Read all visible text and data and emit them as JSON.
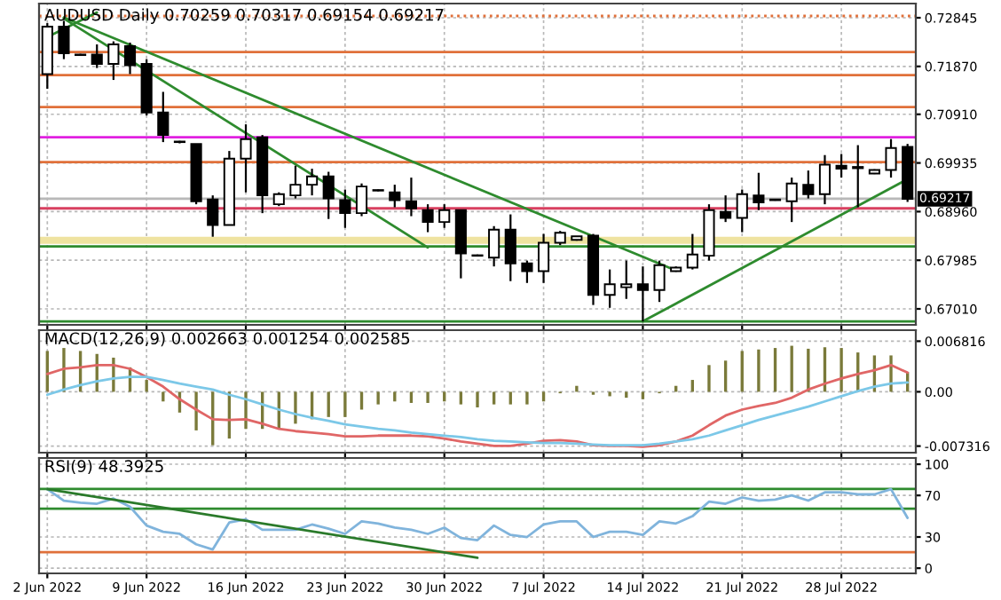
{
  "chart_data": [
    {
      "type": "candlestick",
      "title": "AUDUSD Daily 0.70259 0.70317 0.69154 0.69217",
      "categories": [
        null,
        null,
        null,
        null,
        null,
        null,
        null,
        null,
        null,
        null,
        null,
        null,
        null,
        null,
        null,
        null,
        null,
        null,
        null,
        null,
        null,
        null,
        null,
        null,
        null,
        null,
        null,
        null,
        null,
        null,
        null,
        null,
        null,
        null,
        null,
        null,
        null,
        null,
        null,
        null,
        null,
        null,
        null,
        null,
        null,
        null,
        null,
        null,
        null,
        null,
        null,
        null,
        null
      ],
      "ohlc": [
        [
          0.71716,
          0.72738,
          0.71421,
          0.72667
        ],
        [
          0.72667,
          0.72784,
          0.72016,
          0.72133
        ],
        [
          0.72108,
          0.72122,
          0.72087,
          0.72097
        ],
        [
          0.72108,
          0.72311,
          0.71838,
          0.71919
        ],
        [
          0.71919,
          0.72372,
          0.71599,
          0.72311
        ],
        [
          0.72275,
          0.72347,
          0.71716,
          0.71894
        ],
        [
          0.71919,
          0.72016,
          0.70887,
          0.70948
        ],
        [
          0.70948,
          0.7136,
          0.70353,
          0.70495
        ],
        [
          0.70364,
          0.70378,
          0.70328,
          0.70353
        ],
        [
          0.70317,
          0.70317,
          0.69107,
          0.69168
        ],
        [
          0.69203,
          0.69285,
          0.68456,
          0.6869
        ],
        [
          0.6869,
          0.70175,
          0.6869,
          0.70022
        ],
        [
          0.70022,
          0.70709,
          0.69346,
          0.70414
        ],
        [
          0.70449,
          0.70495,
          0.68929,
          0.69285
        ],
        [
          0.69107,
          0.69346,
          0.69071,
          0.6931
        ],
        [
          0.69285,
          0.6988,
          0.69224,
          0.69499
        ],
        [
          0.69499,
          0.69819,
          0.69285,
          0.69666
        ],
        [
          0.69666,
          0.69758,
          0.68812,
          0.69224
        ],
        [
          0.69189,
          0.69402,
          0.68634,
          0.68929
        ],
        [
          0.68929,
          0.69524,
          0.68868,
          0.69463
        ],
        [
          0.69392,
          0.69402,
          0.69367,
          0.69381
        ],
        [
          0.69346,
          0.69499,
          0.69046,
          0.69189
        ],
        [
          0.69168,
          0.69641,
          0.68868,
          0.69025
        ],
        [
          0.6899,
          0.69107,
          0.68548,
          0.68751
        ],
        [
          0.68751,
          0.69107,
          0.68634,
          0.6899
        ],
        [
          0.6899,
          0.6899,
          0.67622,
          0.68121
        ],
        [
          0.68085,
          0.681,
          0.68064,
          0.68075
        ],
        [
          0.68039,
          0.68669,
          0.67861,
          0.68598
        ],
        [
          0.68598,
          0.68904,
          0.67566,
          0.67922
        ],
        [
          0.67922,
          0.67978,
          0.6753,
          0.67765
        ],
        [
          0.67765,
          0.68512,
          0.6753,
          0.68334
        ],
        [
          0.68334,
          0.68573,
          0.68288,
          0.68537
        ],
        [
          0.68395,
          0.68466,
          0.68377,
          0.68466
        ],
        [
          0.68477,
          0.68512,
          0.67088,
          0.67291
        ],
        [
          0.67291,
          0.678,
          0.67032,
          0.67505
        ],
        [
          0.67444,
          0.67978,
          0.6721,
          0.67505
        ],
        [
          0.67505,
          0.67861,
          0.66757,
          0.67388
        ],
        [
          0.67388,
          0.67978,
          0.67149,
          0.67886
        ],
        [
          0.67765,
          0.67861,
          0.67754,
          0.67836
        ],
        [
          0.67836,
          0.68512,
          0.678,
          0.681
        ],
        [
          0.68075,
          0.69107,
          0.67978,
          0.6899
        ],
        [
          0.68954,
          0.69285,
          0.68751,
          0.68833
        ],
        [
          0.68833,
          0.69402,
          0.68548,
          0.6931
        ],
        [
          0.69285,
          0.69737,
          0.6899,
          0.69143
        ],
        [
          0.69203,
          0.69214,
          0.69178,
          0.69189
        ],
        [
          0.69168,
          0.69641,
          0.68751,
          0.69524
        ],
        [
          0.69499,
          0.69783,
          0.69224,
          0.6931
        ],
        [
          0.6931,
          0.70093,
          0.69107,
          0.69901
        ],
        [
          0.6988,
          0.70114,
          0.69641,
          0.69819
        ],
        [
          0.69855,
          0.70292,
          0.69046,
          0.6983
        ],
        [
          0.69723,
          0.69808,
          0.69712,
          0.69794
        ],
        [
          0.69794,
          0.70414,
          0.69641,
          0.70236
        ],
        [
          0.70259,
          0.70317,
          0.69154,
          0.69217
        ]
      ],
      "series": [
        {
          "type": "line",
          "color": "#2e8b2e",
          "values": [
            0.7246,
            null,
            null,
            0.7295,
            null,
            null,
            null,
            null,
            null,
            null,
            null,
            null,
            null,
            null,
            null,
            null,
            null,
            null,
            null,
            null,
            null,
            null,
            null,
            null,
            null,
            null,
            null,
            null,
            null,
            null,
            null,
            null,
            null,
            null,
            null,
            null,
            null,
            null,
            null,
            null,
            null,
            null,
            null,
            null,
            null,
            null,
            null,
            null,
            null,
            null,
            null,
            null,
            null
          ]
        },
        {
          "type": "line",
          "color": "#2e8b2e",
          "values": [
            null,
            0.7283,
            null,
            null,
            null,
            null,
            null,
            null,
            null,
            null,
            null,
            null,
            null,
            null,
            null,
            null,
            null,
            null,
            null,
            null,
            null,
            null,
            null,
            0.6824,
            null,
            null,
            null,
            null,
            null,
            null,
            null,
            null,
            null,
            null,
            null,
            null,
            null,
            null,
            null,
            null,
            null,
            null,
            null,
            null,
            null,
            null,
            null,
            null,
            null,
            null,
            null,
            null,
            null
          ]
        },
        {
          "type": "line",
          "color": "#2e8b2e",
          "values": [
            null,
            0.7285,
            null,
            null,
            null,
            null,
            null,
            null,
            null,
            null,
            null,
            null,
            null,
            null,
            null,
            null,
            null,
            null,
            null,
            null,
            null,
            null,
            null,
            null,
            null,
            null,
            null,
            null,
            null,
            null,
            null,
            null,
            null,
            null,
            null,
            null,
            null,
            null,
            0.6778,
            null,
            null,
            null,
            null,
            null,
            null,
            null,
            null,
            null,
            null,
            null,
            null,
            null,
            null
          ]
        },
        {
          "type": "line",
          "color": "#2e8b2e",
          "values": [
            null,
            null,
            null,
            null,
            null,
            null,
            null,
            null,
            null,
            null,
            null,
            null,
            null,
            null,
            null,
            null,
            null,
            null,
            null,
            null,
            null,
            null,
            null,
            null,
            null,
            null,
            null,
            null,
            null,
            null,
            null,
            null,
            null,
            null,
            null,
            null,
            0.6676,
            null,
            null,
            null,
            null,
            null,
            null,
            null,
            null,
            null,
            null,
            null,
            null,
            null,
            null,
            null,
            0.6961
          ]
        }
      ],
      "ref_lines": [
        {
          "axis": "y",
          "value": 0.72881,
          "color": "#e0703a",
          "line_style": "dotted"
        },
        {
          "axis": "y",
          "value": 0.72158,
          "color": "#e0703a"
        },
        {
          "axis": "y",
          "value": 0.71695,
          "color": "#e0703a"
        },
        {
          "axis": "y",
          "value": 0.71054,
          "color": "#e0703a"
        },
        {
          "axis": "y",
          "value": 0.70449,
          "color": "#e020e0"
        },
        {
          "axis": "y",
          "value": 0.69951,
          "color": "#e0703a"
        },
        {
          "axis": "y",
          "value": 0.69025,
          "color": "#d84060"
        },
        {
          "axis": "y",
          "value": 0.69217,
          "label": "0.69217",
          "color": "#b8b8b8"
        },
        {
          "axis": "y",
          "value": 0.68263,
          "color": "#2e8b2e"
        },
        {
          "axis": "y",
          "value": 0.66757,
          "color": "#2e8b2e"
        }
      ],
      "bands": [
        {
          "axis": "y",
          "from": 0.68313,
          "to": 0.68456,
          "color": "#efe3a0"
        }
      ],
      "ylim": [
        0.6669,
        0.7313
      ],
      "yticks": [
        0.72845,
        {
          "value": 0.7187,
          "label": "0.71870"
        },
        {
          "value": 0.7091,
          "label": "0.70910"
        },
        0.69935,
        {
          "value": 0.6896,
          "label": "0.68960"
        },
        0.67985,
        {
          "value": 0.6701,
          "label": "0.67010"
        }
      ],
      "grid": true,
      "tick_labels": "y"
    },
    {
      "type": "bar",
      "title": "MACD(12,26,9) 0.002663 0.001254 0.002585",
      "categories": [
        null,
        null,
        null,
        null,
        null,
        null,
        null,
        null,
        null,
        null,
        null,
        null,
        null,
        null,
        null,
        null,
        null,
        null,
        null,
        null,
        null,
        null,
        null,
        null,
        null,
        null,
        null,
        null,
        null,
        null,
        null,
        null,
        null,
        null,
        null,
        null,
        null,
        null,
        null,
        null,
        null,
        null,
        null,
        null,
        null,
        null,
        null,
        null,
        null,
        null,
        null,
        null,
        null
      ],
      "series": [
        {
          "color": "#7a7a3a",
          "values": [
            0.0055,
            0.0059,
            0.0055,
            0.0051,
            0.0046,
            0.0033,
            0.0016,
            -0.0013,
            -0.0028,
            -0.0052,
            -0.0072,
            -0.0063,
            -0.005,
            -0.005,
            -0.005,
            -0.0043,
            -0.0037,
            -0.0034,
            -0.0034,
            -0.0024,
            -0.0017,
            -0.0013,
            -0.0015,
            -0.0015,
            -0.0013,
            -0.0017,
            -0.0021,
            -0.0017,
            -0.0017,
            -0.0017,
            -0.0013,
            -0.0002,
            0.0008,
            -0.0004,
            -0.0006,
            -0.0008,
            -0.001,
            -0.0002,
            0.0008,
            0.0016,
            0.0036,
            0.0042,
            0.0055,
            0.0057,
            0.0059,
            0.0062,
            0.0058,
            0.006,
            0.0059,
            0.0053,
            0.0049,
            0.0049,
            0.002663
          ]
        },
        {
          "type": "line",
          "color": "#e06666",
          "values": [
            0.0024,
            0.0031,
            0.0033,
            0.0036,
            0.0036,
            0.0031,
            0.002,
            0.0007,
            -0.001,
            -0.0024,
            -0.0037,
            -0.0038,
            -0.0037,
            -0.0043,
            -0.005,
            -0.0053,
            -0.0055,
            -0.0057,
            -0.006,
            -0.006,
            -0.0059,
            -0.0059,
            -0.0059,
            -0.006,
            -0.0063,
            -0.0067,
            -0.007,
            -0.0073,
            -0.0073,
            -0.007,
            -0.0066,
            -0.0065,
            -0.0067,
            -0.0072,
            -0.0073,
            -0.0073,
            -0.0074,
            -0.0072,
            -0.0067,
            -0.0059,
            -0.0045,
            -0.0032,
            -0.0024,
            -0.0019,
            -0.0015,
            -0.0008,
            0.0003,
            0.0011,
            0.0018,
            0.0024,
            0.0029,
            0.0036,
            0.002585
          ]
        },
        {
          "type": "line",
          "color": "#7cc8e8",
          "values": [
            -0.0004,
            0.0003,
            0.0009,
            0.0014,
            0.0018,
            0.002,
            0.002,
            0.0016,
            0.0011,
            0.0007,
            0.0003,
            -0.0004,
            -0.001,
            -0.0017,
            -0.0024,
            -0.003,
            -0.0035,
            -0.0039,
            -0.0044,
            -0.0047,
            -0.005,
            -0.0052,
            -0.0055,
            -0.0057,
            -0.0059,
            -0.0061,
            -0.0064,
            -0.0066,
            -0.0067,
            -0.0068,
            -0.0069,
            -0.0069,
            -0.007,
            -0.0071,
            -0.0072,
            -0.0072,
            -0.0072,
            -0.007,
            -0.0067,
            -0.0064,
            -0.0059,
            -0.0052,
            -0.0045,
            -0.0038,
            -0.0032,
            -0.0026,
            -0.002,
            -0.0013,
            -0.0006,
            0.0001,
            0.0007,
            0.0011,
            0.001254
          ]
        }
      ],
      "ylim": [
        -0.0082,
        0.0083
      ],
      "yticks": [
        0.006816,
        {
          "value": 0,
          "label": "0.00"
        },
        {
          "value": -0.007316,
          "label": "-0.007316"
        }
      ],
      "grid": true,
      "tick_labels": "y"
    },
    {
      "type": "line",
      "title": "RSI(9) 48.3925",
      "categories": [
        "2 Jun 2022",
        null,
        null,
        null,
        null,
        null,
        "9 Jun 2022",
        null,
        null,
        null,
        null,
        null,
        "16 Jun 2022",
        null,
        null,
        null,
        null,
        null,
        "23 Jun 2022",
        null,
        null,
        null,
        null,
        null,
        "30 Jun 2022",
        null,
        null,
        null,
        null,
        null,
        "7 Jul 2022",
        null,
        null,
        null,
        null,
        null,
        "14 Jul 2022",
        null,
        null,
        null,
        null,
        null,
        "21 Jul 2022",
        null,
        null,
        null,
        null,
        null,
        "28 Jul 2022",
        null,
        null,
        null,
        null
      ],
      "series": [
        {
          "color": "#80b4dc",
          "values": [
            76,
            65,
            63,
            62,
            67,
            59,
            41,
            35,
            33,
            23,
            18,
            44,
            47,
            37,
            37,
            37,
            42,
            38,
            33,
            45,
            43,
            39,
            37,
            33,
            39,
            29,
            27,
            41,
            32,
            30,
            42,
            45,
            45,
            30,
            35,
            35,
            32,
            45,
            43,
            50,
            64,
            62,
            68,
            65,
            66,
            70,
            65,
            73,
            73,
            71,
            71,
            76,
            48.3925
          ]
        },
        {
          "color": "#2a7a2a",
          "values": [
            76,
            null,
            null,
            null,
            null,
            null,
            null,
            null,
            null,
            null,
            null,
            null,
            null,
            null,
            null,
            null,
            null,
            null,
            null,
            null,
            null,
            null,
            null,
            null,
            null,
            null,
            10,
            null,
            null,
            null,
            null,
            null,
            null,
            null,
            null,
            null,
            null,
            null,
            null,
            null,
            null,
            null,
            null,
            null,
            null,
            null,
            null,
            null,
            null,
            null,
            null,
            null,
            null
          ]
        }
      ],
      "ref_lines": [
        {
          "axis": "y",
          "value": 76.3,
          "color": "#2e8b2e"
        },
        {
          "axis": "y",
          "value": 57.3,
          "color": "#2e8b2e"
        },
        {
          "axis": "y",
          "value": 15.3,
          "color": "#e0703a"
        }
      ],
      "ylim": [
        -5,
        106
      ],
      "yticks": [
        0,
        30,
        70,
        100
      ],
      "grid": true
    }
  ]
}
